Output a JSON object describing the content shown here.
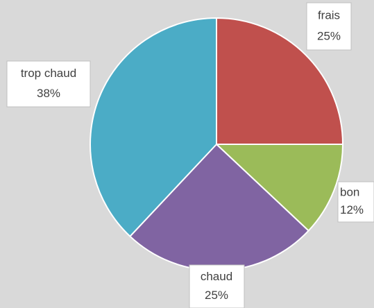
{
  "chart_data": {
    "type": "pie",
    "categories": [
      "frais",
      "bon",
      "chaud",
      "trop chaud"
    ],
    "values": [
      25,
      12,
      25,
      38
    ],
    "value_labels": [
      "25%",
      "12%",
      "25%",
      "38%"
    ],
    "colors": [
      "#c0504d",
      "#9bbb59",
      "#8064a2",
      "#4bacc6"
    ]
  }
}
